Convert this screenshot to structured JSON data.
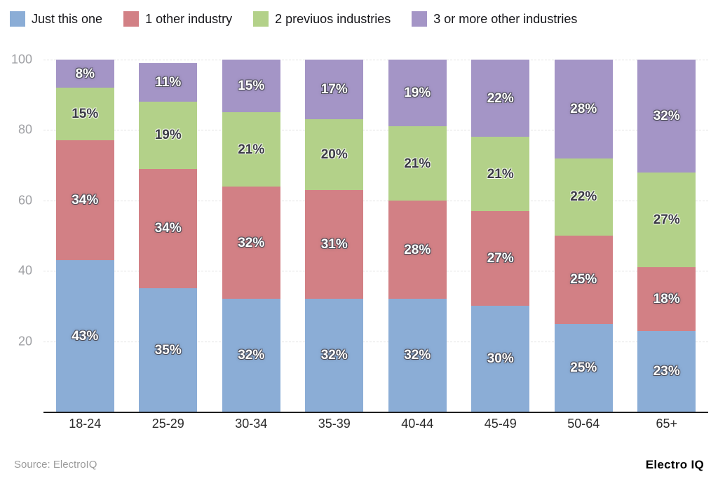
{
  "chart_data": {
    "type": "bar",
    "stacked": true,
    "title": "",
    "categories": [
      "18-24",
      "25-29",
      "30-34",
      "35-39",
      "40-44",
      "45-49",
      "50-64",
      "65+"
    ],
    "series": [
      {
        "name": "Just this one",
        "color": "#8badd6",
        "label_style": "light",
        "values": [
          43,
          35,
          32,
          32,
          32,
          30,
          25,
          23
        ]
      },
      {
        "name": "1 other industry",
        "color": "#d28085",
        "label_style": "light",
        "values": [
          34,
          34,
          32,
          31,
          28,
          27,
          25,
          18
        ]
      },
      {
        "name": "2 previuos industries",
        "color": "#b3d189",
        "label_style": "dark",
        "values": [
          15,
          19,
          21,
          20,
          21,
          21,
          22,
          27
        ]
      },
      {
        "name": "3 or more other industries",
        "color": "#a495c6",
        "label_style": "light",
        "values": [
          8,
          11,
          15,
          17,
          19,
          22,
          28,
          32
        ]
      }
    ],
    "value_suffix": "%",
    "xlabel": "",
    "ylabel": "",
    "yticks": [
      20,
      40,
      60,
      80,
      100
    ],
    "ylim": [
      0,
      100
    ],
    "grid": true,
    "legend_position": "top"
  },
  "footer": {
    "source": "Source: ElectroIQ",
    "brand": "Electro IQ"
  },
  "colors": {
    "background": "#ffffff",
    "axis": "#1f1f1f",
    "grid": "#e2e2e2",
    "y_tick": "#9fa0a4",
    "x_tick": "#2b2b2b"
  }
}
